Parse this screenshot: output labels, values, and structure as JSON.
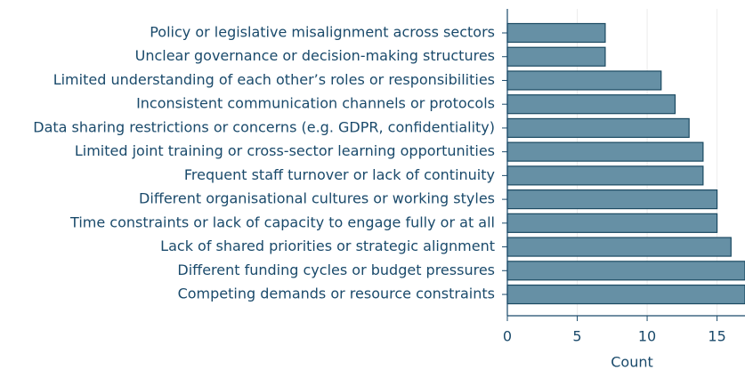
{
  "chart_data": {
    "type": "barh",
    "categories": [
      "Policy or legislative misalignment across sectors",
      "Unclear governance or decision-making structures",
      "Limited understanding of each other’s roles or responsibilities",
      "Inconsistent communication channels or protocols",
      "Data sharing restrictions or concerns (e.g. GDPR, confidentiality)",
      "Limited joint training or cross-sector learning opportunities",
      "Frequent staff turnover or lack of continuity",
      "Different organisational cultures or working styles",
      "Time constraints or lack of capacity to engage fully or at all",
      "Lack of shared priorities or strategic alignment",
      "Different funding cycles or budget pressures",
      "Competing demands or resource constraints"
    ],
    "values": [
      7,
      7,
      11,
      12,
      13,
      14,
      14,
      15,
      15,
      16,
      17,
      17
    ],
    "color": "#6690a5",
    "edgecolor": "#1b4a62",
    "xlabel": "Count",
    "xlim": [
      0,
      17
    ],
    "xticks": [
      0,
      5,
      10,
      15
    ],
    "grid": true
  }
}
